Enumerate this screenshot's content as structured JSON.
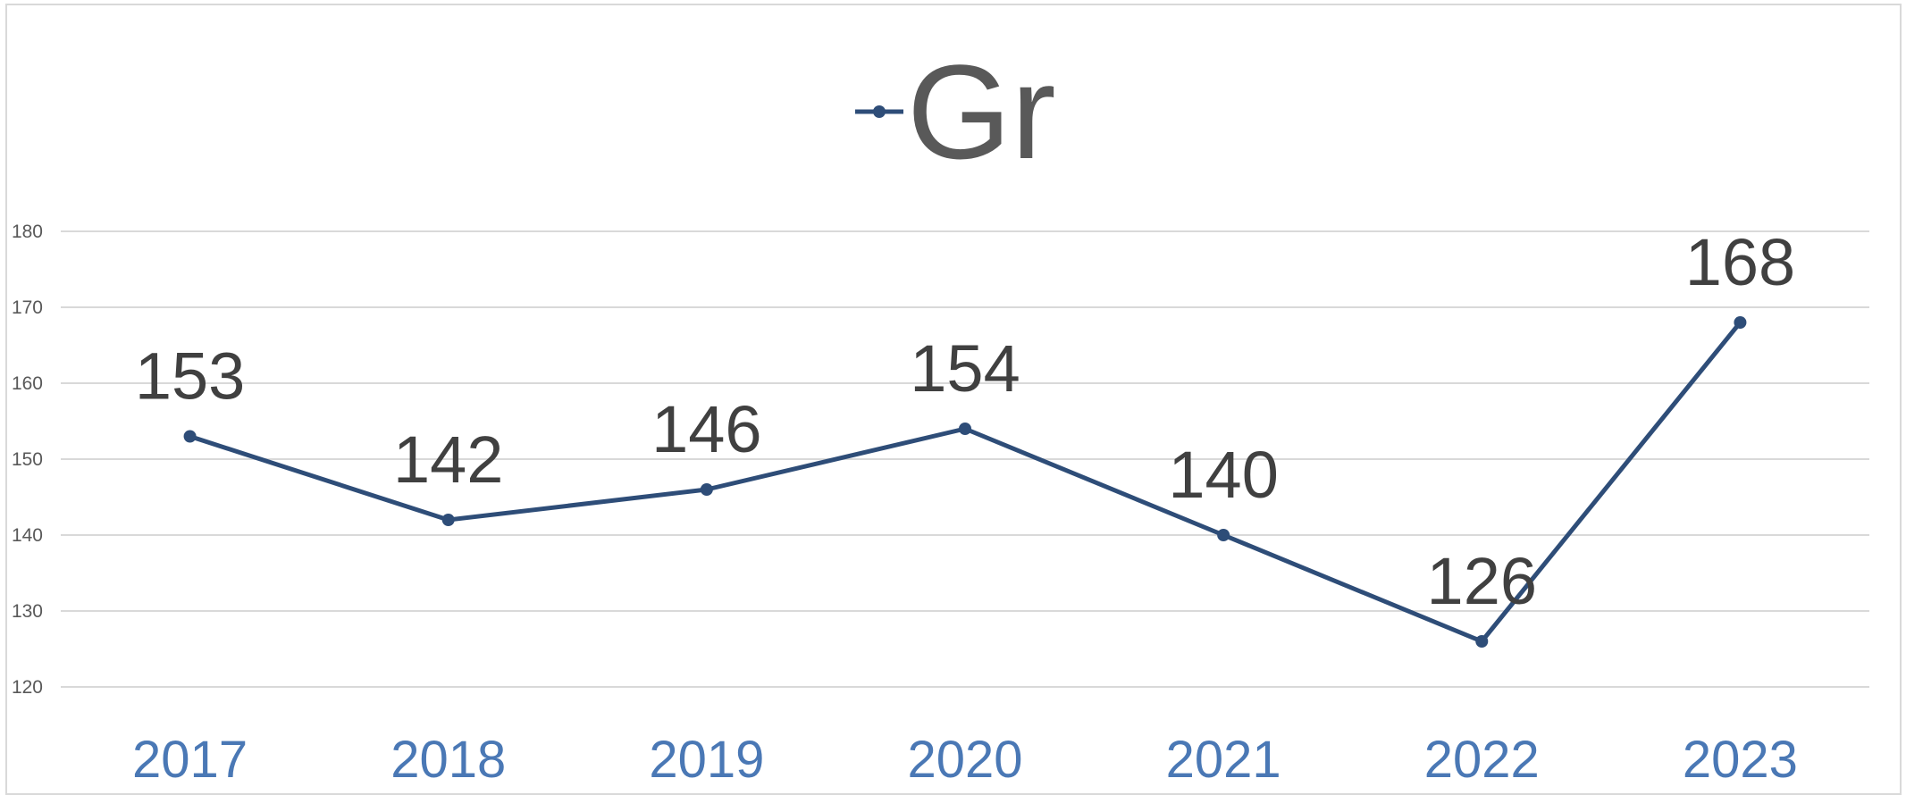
{
  "chart_data": {
    "type": "line",
    "legend": "top",
    "categories": [
      "2017",
      "2018",
      "2019",
      "2020",
      "2021",
      "2022",
      "2023"
    ],
    "series": [
      {
        "name": "Gr",
        "color": "#2e4d78",
        "values": [
          153,
          142,
          146,
          154,
          140,
          126,
          168
        ]
      }
    ],
    "ylim": [
      120,
      180
    ],
    "yticks": [
      120,
      130,
      140,
      150,
      160,
      170,
      180
    ],
    "grid": true
  }
}
